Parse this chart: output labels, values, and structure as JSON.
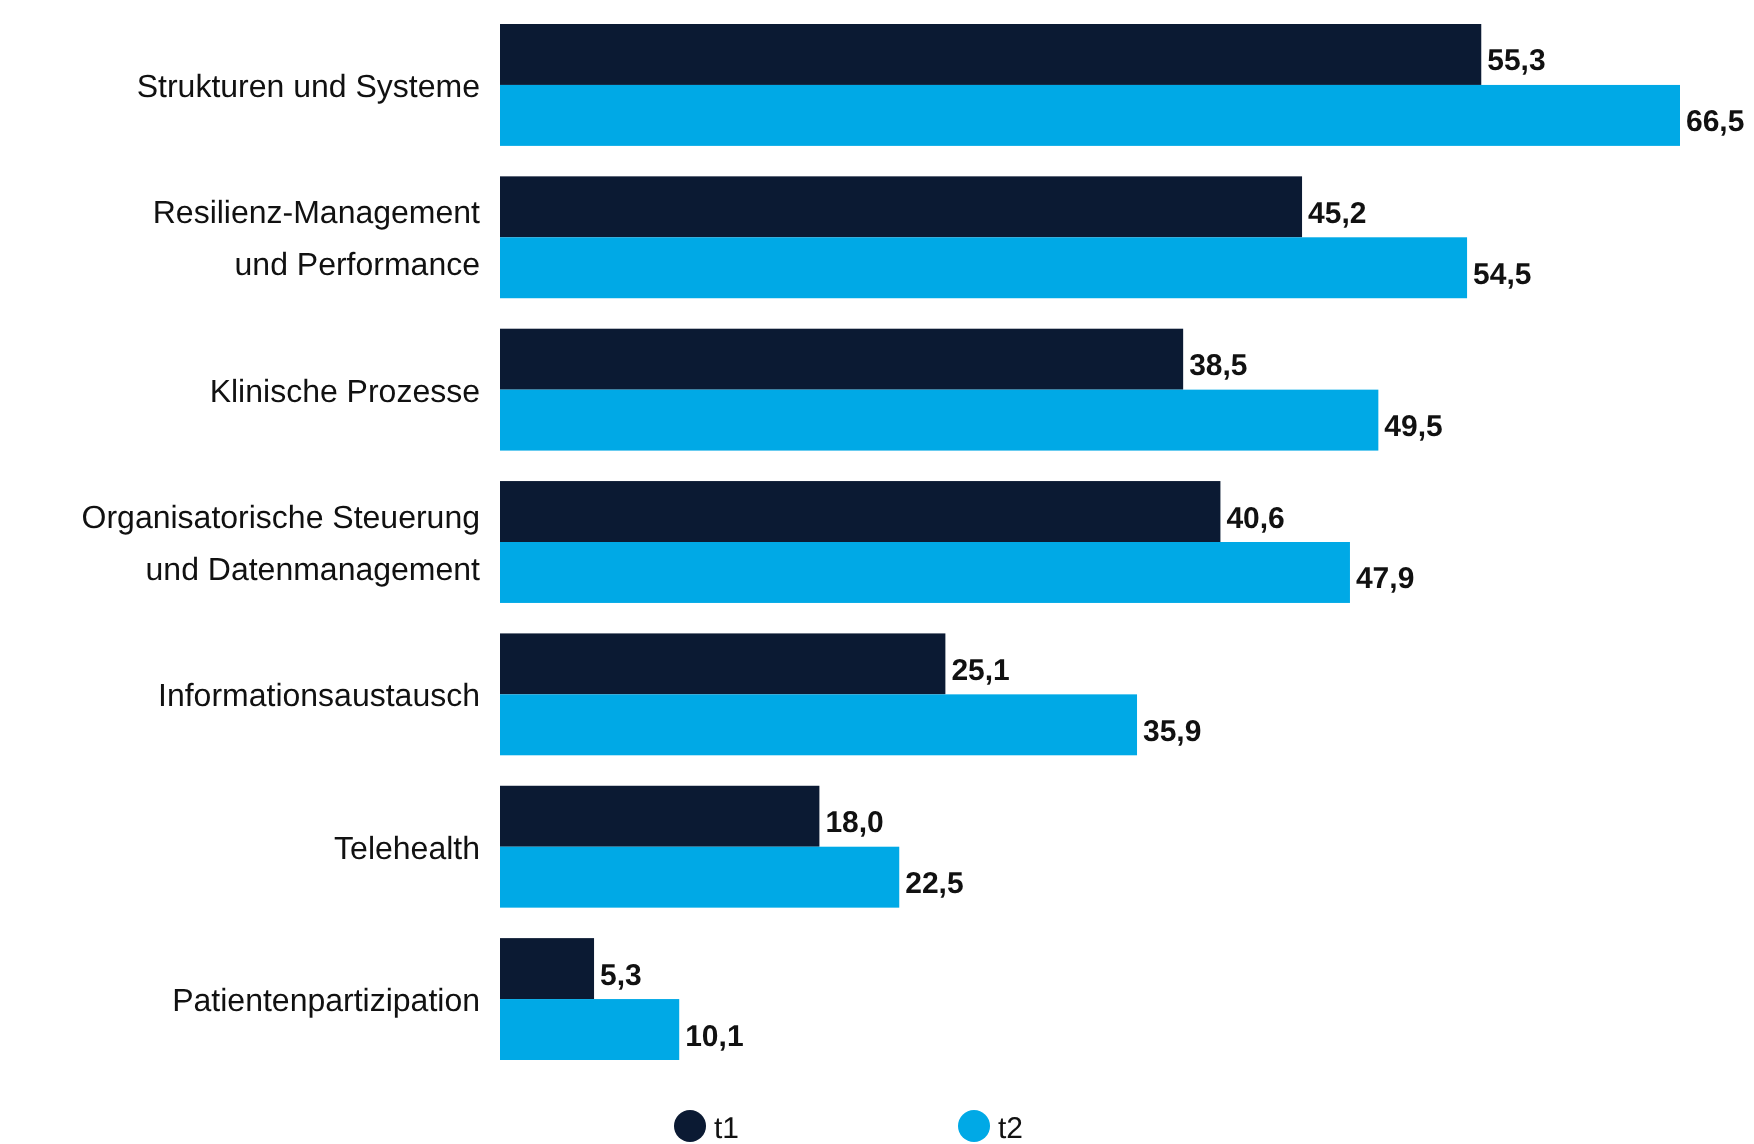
{
  "chart_data": {
    "type": "bar",
    "orientation": "horizontal",
    "categories": [
      "Strukturen und Systeme",
      "Resilienz-Management und Performance",
      "Klinische Prozesse",
      "Organisatorische Steuerung und Datenmanagement",
      "Informationsaustausch",
      "Telehealth",
      "Patientenpartizipation"
    ],
    "series": [
      {
        "name": "t1",
        "color": "#0b1a33",
        "values": [
          55.3,
          45.2,
          38.5,
          40.6,
          25.1,
          18.0,
          5.3
        ],
        "value_labels": [
          "55,3",
          "45,2",
          "38,5",
          "40,6",
          "25,1",
          "18,0",
          "5,3"
        ]
      },
      {
        "name": "t2",
        "color": "#00a9e6",
        "values": [
          66.5,
          54.5,
          49.5,
          47.9,
          35.9,
          22.5,
          10.1
        ],
        "value_labels": [
          "66,5",
          "54,5",
          "49,5",
          "47,9",
          "35,9",
          "22,5",
          "10,1"
        ]
      }
    ],
    "legend": "bottom"
  }
}
